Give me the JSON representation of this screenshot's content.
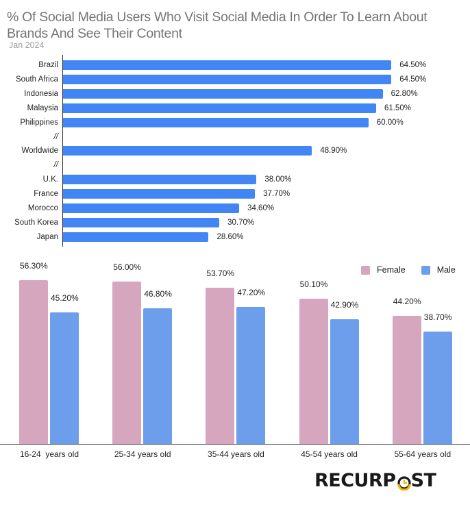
{
  "header": {
    "title": "% Of Social Media Users Who Visit Social Media In Order To Learn About Brands And See Their Content",
    "subtitle": "Jan 2024"
  },
  "brand": {
    "logo_text_left": "RECURP",
    "logo_text_right": "ST",
    "logo_full": "RECURPOST",
    "accent": "#f5b700"
  },
  "colors": {
    "bar_blue": "#4285f4",
    "female": "#d5a6bd",
    "male": "#6d9eeb"
  },
  "chart_data": [
    {
      "type": "bar",
      "orientation": "horizontal",
      "title": "% Of Social Media Users Who Visit Social Media In Order To Learn About Brands And See Their Content",
      "subtitle": "Jan 2024",
      "categories": [
        "Brazil",
        "South Africa",
        "Indonesia",
        "Malaysia",
        "Philippines",
        "//",
        "Worldwide",
        "//",
        "U.K.",
        "France",
        "Morocco",
        "South Korea",
        "Japan"
      ],
      "values": [
        64.5,
        64.5,
        62.8,
        61.5,
        60.0,
        null,
        48.9,
        null,
        38.0,
        37.7,
        34.6,
        30.7,
        28.6
      ],
      "labels": [
        "64.50%",
        "64.50%",
        "62.80%",
        "61.50%",
        "60.00%",
        "",
        "48.90%",
        "",
        "38.00%",
        "37.70%",
        "34.60%",
        "30.70%",
        "28.60%"
      ],
      "xlabel": "",
      "ylabel": "",
      "grid": false
    },
    {
      "type": "bar",
      "orientation": "vertical",
      "categories": [
        "16-24  years old",
        "25-34 years old",
        "35-44 years old",
        "45-54 years old",
        "55-64 years old"
      ],
      "series": [
        {
          "name": "Female",
          "values": [
            56.3,
            56.0,
            53.7,
            50.1,
            44.2
          ],
          "labels": [
            "56.30%",
            "56.00%",
            "53.70%",
            "50.10%",
            "44.20%"
          ]
        },
        {
          "name": "Male",
          "values": [
            45.2,
            46.8,
            47.2,
            42.9,
            38.7
          ],
          "labels": [
            "45.20%",
            "46.80%",
            "47.20%",
            "42.90%",
            "38.70%"
          ]
        }
      ],
      "legend_position": "top-right",
      "xlabel": "",
      "ylabel": "",
      "grid": false
    }
  ]
}
